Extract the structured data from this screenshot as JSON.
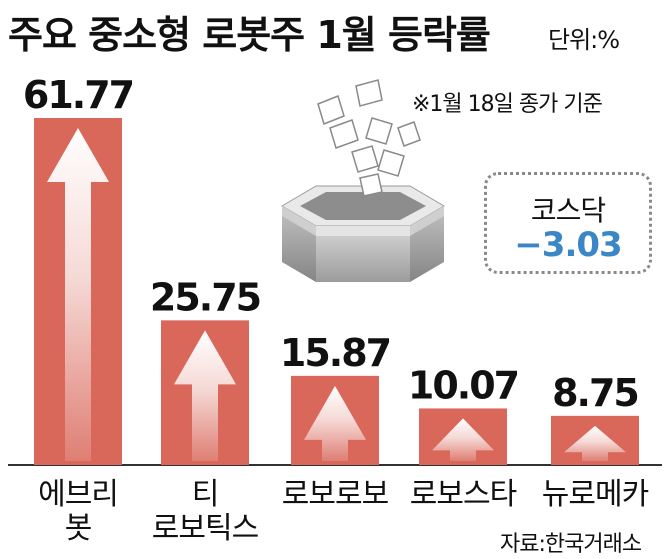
{
  "header": {
    "title": "주요 중소형 로봇주 1월 등락률",
    "unit": "단위:%",
    "note": "※1월 18일 종가 기준"
  },
  "kosdaq": {
    "label": "코스닥",
    "value": "−3.03"
  },
  "source": "자료:한국거래소",
  "colors": {
    "bar": "#d9685b",
    "bar_edge": "#c85a4d",
    "kosdaq_value": "#3a86c6"
  },
  "chart_data": {
    "type": "bar",
    "categories": [
      [
        "에브리",
        "봇"
      ],
      [
        "티",
        "로보틱스"
      ],
      [
        "로보로보"
      ],
      [
        "로보스타"
      ],
      [
        "뉴로메카"
      ]
    ],
    "values": [
      61.77,
      25.75,
      15.87,
      10.07,
      8.75
    ],
    "data_labels": [
      "61.77",
      "25.75",
      "15.87",
      "10.07",
      "8.75"
    ],
    "title": "주요 중소형 로봇주 1월 등락률",
    "ylabel": "",
    "xlabel": "",
    "ylim": [
      0,
      70
    ]
  }
}
